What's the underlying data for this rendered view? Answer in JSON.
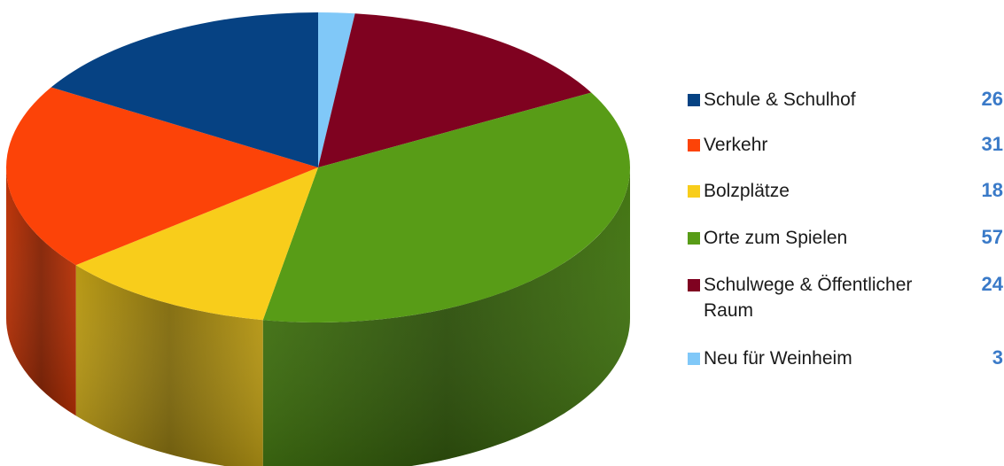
{
  "chart_data": {
    "type": "pie",
    "style": "3d-pie",
    "categories": [
      "Schule & Schulhof",
      "Verkehr",
      "Bolzplätze",
      "Orte zum Spielen",
      "Schulwege & Öffentlicher Raum",
      "Neu für Weinheim"
    ],
    "values": [
      26,
      31,
      18,
      57,
      24,
      3
    ],
    "colors": [
      "#064283",
      "#fc4308",
      "#f8cd1b",
      "#589c17",
      "#7f0220",
      "#80c8f8"
    ],
    "legend_position": "right",
    "title": ""
  }
}
